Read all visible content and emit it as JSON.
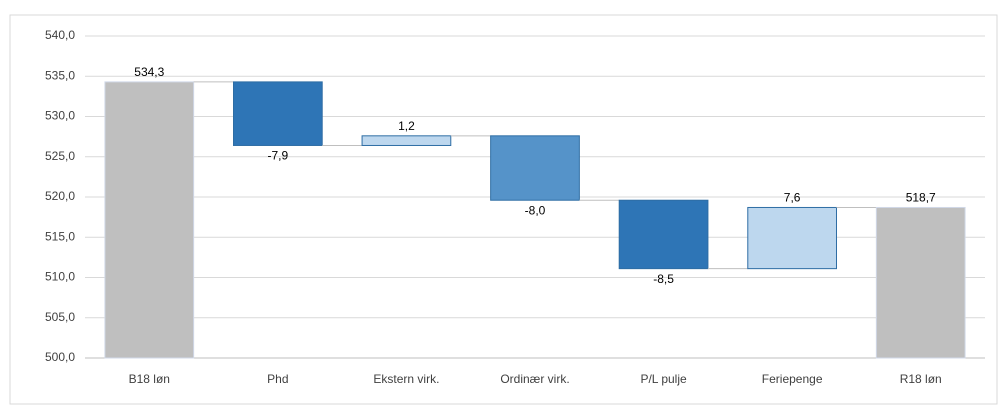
{
  "chart_data": {
    "type": "waterfall",
    "categories": [
      "B18 løn",
      "Phd",
      "Ekstern virk.",
      "Ordinær virk.",
      "P/L pulje",
      "Feriepenge",
      "R18 løn"
    ],
    "values": [
      534.3,
      -7.9,
      1.2,
      -8.0,
      -8.5,
      7.6,
      518.7
    ],
    "value_labels": [
      "534,3",
      "-7,9",
      "1,2",
      "-8,0",
      "-8,5",
      "7,6",
      "518,7"
    ],
    "total": [
      true,
      false,
      false,
      false,
      false,
      false,
      true
    ],
    "colors": [
      "#bfbfbf",
      "#2e75b6",
      "#bdd7ee",
      "#5593c9",
      "#2e75b6",
      "#bdd7ee",
      "#bfbfbf"
    ],
    "ylim": [
      500,
      540
    ],
    "yticks": [
      {
        "value": 500,
        "label": "500,0"
      },
      {
        "value": 505,
        "label": "505,0"
      },
      {
        "value": 510,
        "label": "510,0"
      },
      {
        "value": 515,
        "label": "515,0"
      },
      {
        "value": 520,
        "label": "520,0"
      },
      {
        "value": 525,
        "label": "525,0"
      },
      {
        "value": 530,
        "label": "530,0"
      },
      {
        "value": 535,
        "label": "535,0"
      },
      {
        "value": 540,
        "label": "540,0"
      }
    ],
    "grid": true
  }
}
